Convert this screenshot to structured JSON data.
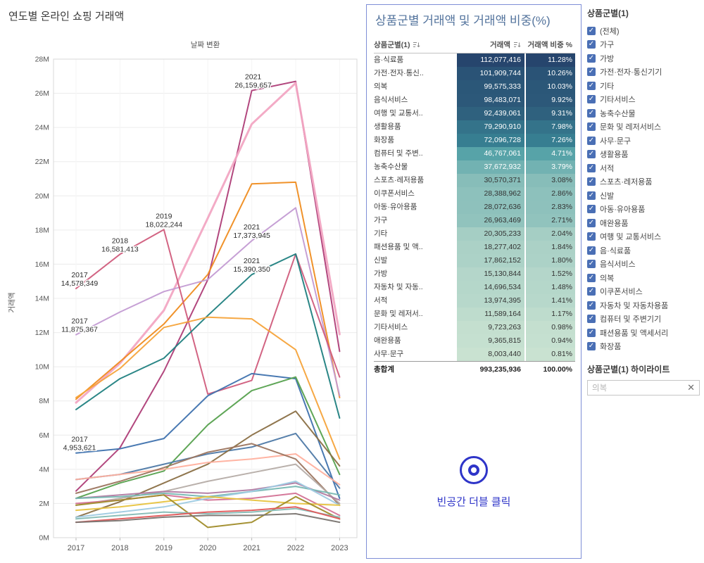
{
  "chart": {
    "title": "연도별 온라인 쇼핑 거래액",
    "subtitle": "날짜 변환",
    "ylabel": "거래액"
  },
  "chart_data": {
    "type": "line",
    "title": "연도별 온라인 쇼핑 거래액",
    "subtitle": "날짜 변환",
    "xlabel": "",
    "ylabel": "거래액",
    "x": [
      2017,
      2018,
      2019,
      2020,
      2021,
      2022,
      2023
    ],
    "ylim": [
      0,
      28
    ],
    "y_ticks": [
      "0M",
      "2M",
      "4M",
      "6M",
      "8M",
      "10M",
      "12M",
      "14M",
      "16M",
      "18M",
      "20M",
      "22M",
      "24M",
      "26M",
      "28M"
    ],
    "grid": "horizontal",
    "legend": "none",
    "series": [
      {
        "name": "음식서비스",
        "color": "#ae3d77",
        "width": 2,
        "values": [
          2.73,
          5.26,
          9.74,
          15.1,
          26.16,
          26.7,
          10.9
        ]
      },
      {
        "name": "음·식료품",
        "color": "#f2a6c3",
        "width": 3,
        "values": [
          7.9,
          10.2,
          13.3,
          18.7,
          24.2,
          26.6,
          11.9
        ]
      },
      {
        "name": "가전·전자·통신기기",
        "color": "#ef8c1f",
        "width": 2,
        "values": [
          8.1,
          10.3,
          12.5,
          15.4,
          20.7,
          20.8,
          8.2
        ]
      },
      {
        "name": "의복",
        "color": "#c39bd3",
        "width": 2,
        "values": [
          11.875,
          13.2,
          14.4,
          15.1,
          17.374,
          19.3,
          8.3
        ]
      },
      {
        "name": "여행 및 교통서비스",
        "color": "#d05c7c",
        "width": 2,
        "values": [
          14.578,
          16.581,
          18.022,
          8.4,
          9.2,
          16.6,
          9.4
        ]
      },
      {
        "name": "생활용품",
        "color": "#1f7f80",
        "width": 2,
        "values": [
          7.5,
          9.3,
          10.5,
          13.0,
          15.39,
          16.6,
          7.0
        ]
      },
      {
        "name": "화장품",
        "color": "#f6a33a",
        "width": 2,
        "values": [
          8.2,
          9.9,
          12.3,
          12.9,
          12.8,
          11.0,
          4.6
        ]
      },
      {
        "name": "컴퓨터 및 주변기기",
        "color": "#3f72ae",
        "width": 2,
        "values": [
          4.954,
          5.2,
          5.8,
          8.3,
          9.6,
          9.3,
          2.3
        ]
      },
      {
        "name": "농축수산물",
        "color": "#56a14e",
        "width": 2,
        "values": [
          2.3,
          3.2,
          3.9,
          6.6,
          8.6,
          9.4,
          3.7
        ]
      },
      {
        "name": "스포츠·레저용품",
        "color": "#4e79a7",
        "width": 2,
        "values": [
          3.4,
          3.7,
          4.3,
          4.9,
          5.3,
          6.1,
          2.9
        ]
      },
      {
        "name": "이쿠폰서비스",
        "color": "#8a6f45",
        "width": 2,
        "values": [
          1.2,
          2.1,
          3.2,
          4.3,
          6.0,
          7.4,
          4.2
        ]
      },
      {
        "name": "아동·유아용품",
        "color": "#ffb09e",
        "width": 2,
        "values": [
          3.4,
          3.7,
          4.0,
          4.4,
          4.6,
          4.9,
          3.1
        ]
      },
      {
        "name": "가구",
        "color": "#9c755f",
        "width": 2,
        "values": [
          2.6,
          3.3,
          4.1,
          5.0,
          5.5,
          4.6,
          1.9
        ]
      },
      {
        "name": "기타",
        "color": "#b5aca6",
        "width": 2,
        "values": [
          1.9,
          2.3,
          2.7,
          3.3,
          3.8,
          4.3,
          2.0
        ]
      },
      {
        "name": "패션용품 및 액세서리",
        "color": "#b07aa1",
        "width": 2,
        "values": [
          2.3,
          2.5,
          2.7,
          2.6,
          2.8,
          3.2,
          2.2
        ]
      },
      {
        "name": "신발",
        "color": "#76b7b2",
        "width": 2,
        "values": [
          2.3,
          2.4,
          2.6,
          2.4,
          2.7,
          3.0,
          2.5
        ]
      },
      {
        "name": "가방",
        "color": "#d37295",
        "width": 2,
        "values": [
          2.0,
          2.2,
          2.5,
          2.2,
          2.3,
          2.6,
          1.3
        ]
      },
      {
        "name": "자동차 및 자동차용품",
        "color": "#9ecae1",
        "width": 2,
        "values": [
          1.2,
          1.5,
          1.8,
          2.3,
          2.7,
          3.3,
          1.9
        ]
      },
      {
        "name": "서적",
        "color": "#e7c33f",
        "width": 2,
        "values": [
          1.6,
          1.8,
          2.1,
          2.4,
          2.2,
          2.0,
          1.9
        ]
      },
      {
        "name": "문화 및 레저서비스",
        "color": "#a08c2a",
        "width": 2,
        "values": [
          1.9,
          2.2,
          2.5,
          0.6,
          0.9,
          2.4,
          1.1
        ]
      },
      {
        "name": "기타서비스",
        "color": "#86bcb6",
        "width": 2,
        "values": [
          1.1,
          1.3,
          1.5,
          1.4,
          1.5,
          1.7,
          1.2
        ]
      },
      {
        "name": "애완용품",
        "color": "#e15759",
        "width": 2,
        "values": [
          0.9,
          1.1,
          1.3,
          1.5,
          1.6,
          1.8,
          1.1
        ]
      },
      {
        "name": "사무·문구",
        "color": "#797470",
        "width": 2,
        "values": [
          0.9,
          1.0,
          1.2,
          1.3,
          1.3,
          1.4,
          0.9
        ]
      }
    ],
    "annotations": [
      {
        "year": 2021,
        "value": 26.159657,
        "year_label": "2021",
        "value_label": "26,159,657",
        "dx": 2
      },
      {
        "year": 2019,
        "value": 18.022244,
        "year_label": "2019",
        "value_label": "18,022,244",
        "dx": 0
      },
      {
        "year": 2018,
        "value": 16.581413,
        "year_label": "2018",
        "value_label": "16,581,413",
        "dx": 0
      },
      {
        "year": 2021,
        "value": 17.373945,
        "year_label": "2021",
        "value_label": "17,373,945",
        "dx": 0
      },
      {
        "year": 2017,
        "value": 14.578349,
        "year_label": "2017",
        "value_label": "14,578,349",
        "dx": 5
      },
      {
        "year": 2021,
        "value": 15.39035,
        "year_label": "2021",
        "value_label": "15,390,350",
        "dx": 0
      },
      {
        "year": 2017,
        "value": 11.875367,
        "year_label": "2017",
        "value_label": "11,875,367",
        "dx": 5
      },
      {
        "year": 2017,
        "value": 4.953621,
        "year_label": "2017",
        "value_label": "4,953,621",
        "dx": 5
      }
    ]
  },
  "table": {
    "title": "상품군별 거래액 및 거래액 비중(%)",
    "columns": [
      "상품군별(1)",
      "거래액",
      "거래액 비중 %"
    ],
    "rows": [
      {
        "name": "음·식료품",
        "value": "112,077,416",
        "pct": "11.28%"
      },
      {
        "name": "가전·전자·통신..",
        "value": "101,909,744",
        "pct": "10.26%"
      },
      {
        "name": "의복",
        "value": "99,575,333",
        "pct": "10.03%"
      },
      {
        "name": "음식서비스",
        "value": "98,483,071",
        "pct": "9.92%"
      },
      {
        "name": "여행 및 교통서..",
        "value": "92,439,061",
        "pct": "9.31%"
      },
      {
        "name": "생활용품",
        "value": "79,290,910",
        "pct": "7.98%"
      },
      {
        "name": "화장품",
        "value": "72,096,728",
        "pct": "7.26%"
      },
      {
        "name": "컴퓨터 및 주변..",
        "value": "46,767,061",
        "pct": "4.71%"
      },
      {
        "name": "농축수산물",
        "value": "37,672,932",
        "pct": "3.79%"
      },
      {
        "name": "스포츠·레저용품",
        "value": "30,570,371",
        "pct": "3.08%"
      },
      {
        "name": "이쿠폰서비스",
        "value": "28,388,962",
        "pct": "2.86%"
      },
      {
        "name": "아동·유아용품",
        "value": "28,072,636",
        "pct": "2.83%"
      },
      {
        "name": "가구",
        "value": "26,963,469",
        "pct": "2.71%"
      },
      {
        "name": "기타",
        "value": "20,305,233",
        "pct": "2.04%"
      },
      {
        "name": "패션용품 및 액..",
        "value": "18,277,402",
        "pct": "1.84%"
      },
      {
        "name": "신발",
        "value": "17,862,152",
        "pct": "1.80%"
      },
      {
        "name": "가방",
        "value": "15,130,844",
        "pct": "1.52%"
      },
      {
        "name": "자동차 및 자동..",
        "value": "14,696,534",
        "pct": "1.48%"
      },
      {
        "name": "서적",
        "value": "13,974,395",
        "pct": "1.41%"
      },
      {
        "name": "문화 및 레저서..",
        "value": "11,589,164",
        "pct": "1.17%"
      },
      {
        "name": "기타서비스",
        "value": "9,723,263",
        "pct": "0.98%"
      },
      {
        "name": "애완용품",
        "value": "9,365,815",
        "pct": "0.94%"
      },
      {
        "name": "사무·문구",
        "value": "8,003,440",
        "pct": "0.81%"
      }
    ],
    "total": {
      "name": "총합계",
      "value": "993,235,936",
      "pct": "100.00%"
    },
    "hint": "빈공간 더블 클릭",
    "colors": {
      "scale_dark": "#26456d",
      "scale_mid": "#3f96a0",
      "scale_light": "#c9e2d1"
    }
  },
  "filters": {
    "title": "상품군별(1)",
    "items": [
      "(전체)",
      "가구",
      "가방",
      "가전·전자·통신기기",
      "기타",
      "기타서비스",
      "농축수산물",
      "문화 및 레저서비스",
      "사무·문구",
      "생활용품",
      "서적",
      "스포츠·레저용품",
      "신발",
      "아동·유아용품",
      "애완용품",
      "여행 및 교통서비스",
      "음·식료품",
      "음식서비스",
      "의복",
      "이쿠폰서비스",
      "자동차 및 자동차용품",
      "컴퓨터 및 주변기기",
      "패션용품 및 액세서리",
      "화장품"
    ],
    "all_checked": true,
    "check_glyph": "✓",
    "checkbox_color": "#4a6fb5"
  },
  "highlight": {
    "title": "상품군별(1) 하이라이트",
    "value": "의복",
    "clear": "✕"
  }
}
